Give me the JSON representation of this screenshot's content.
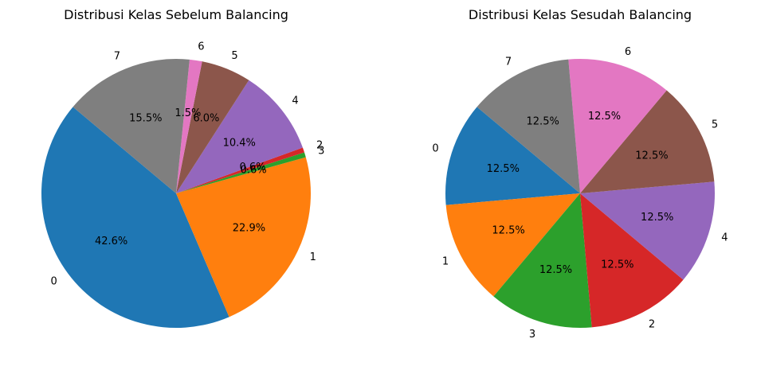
{
  "chart_data": [
    {
      "type": "pie",
      "title": "Distribusi Kelas Sebelum Balancing",
      "slices": [
        {
          "label": "0",
          "value": 42.6,
          "pct": "42.6%",
          "color": "#1f77b4"
        },
        {
          "label": "1",
          "value": 22.9,
          "pct": "22.9%",
          "color": "#ff7f0e"
        },
        {
          "label": "3",
          "value": 0.6,
          "pct": "0.6%",
          "color": "#2ca02c"
        },
        {
          "label": "2",
          "value": 0.6,
          "pct": "0.6%",
          "color": "#d62728"
        },
        {
          "label": "4",
          "value": 10.4,
          "pct": "10.4%",
          "color": "#9467bd"
        },
        {
          "label": "5",
          "value": 6.0,
          "pct": "6.0%",
          "color": "#8c564b"
        },
        {
          "label": "6",
          "value": 1.5,
          "pct": "1.5%",
          "color": "#e377c2"
        },
        {
          "label": "7",
          "value": 15.5,
          "pct": "15.5%",
          "color": "#7f7f7f"
        }
      ]
    },
    {
      "type": "pie",
      "title": "Distribusi Kelas Sesudah Balancing",
      "slices": [
        {
          "label": "0",
          "value": 12.5,
          "pct": "12.5%",
          "color": "#1f77b4"
        },
        {
          "label": "1",
          "value": 12.5,
          "pct": "12.5%",
          "color": "#ff7f0e"
        },
        {
          "label": "3",
          "value": 12.5,
          "pct": "12.5%",
          "color": "#2ca02c"
        },
        {
          "label": "2",
          "value": 12.5,
          "pct": "12.5%",
          "color": "#d62728"
        },
        {
          "label": "4",
          "value": 12.5,
          "pct": "12.5%",
          "color": "#9467bd"
        },
        {
          "label": "5",
          "value": 12.5,
          "pct": "12.5%",
          "color": "#8c564b"
        },
        {
          "label": "6",
          "value": 12.5,
          "pct": "12.5%",
          "color": "#e377c2"
        },
        {
          "label": "7",
          "value": 12.5,
          "pct": "12.5%",
          "color": "#7f7f7f"
        }
      ]
    }
  ]
}
